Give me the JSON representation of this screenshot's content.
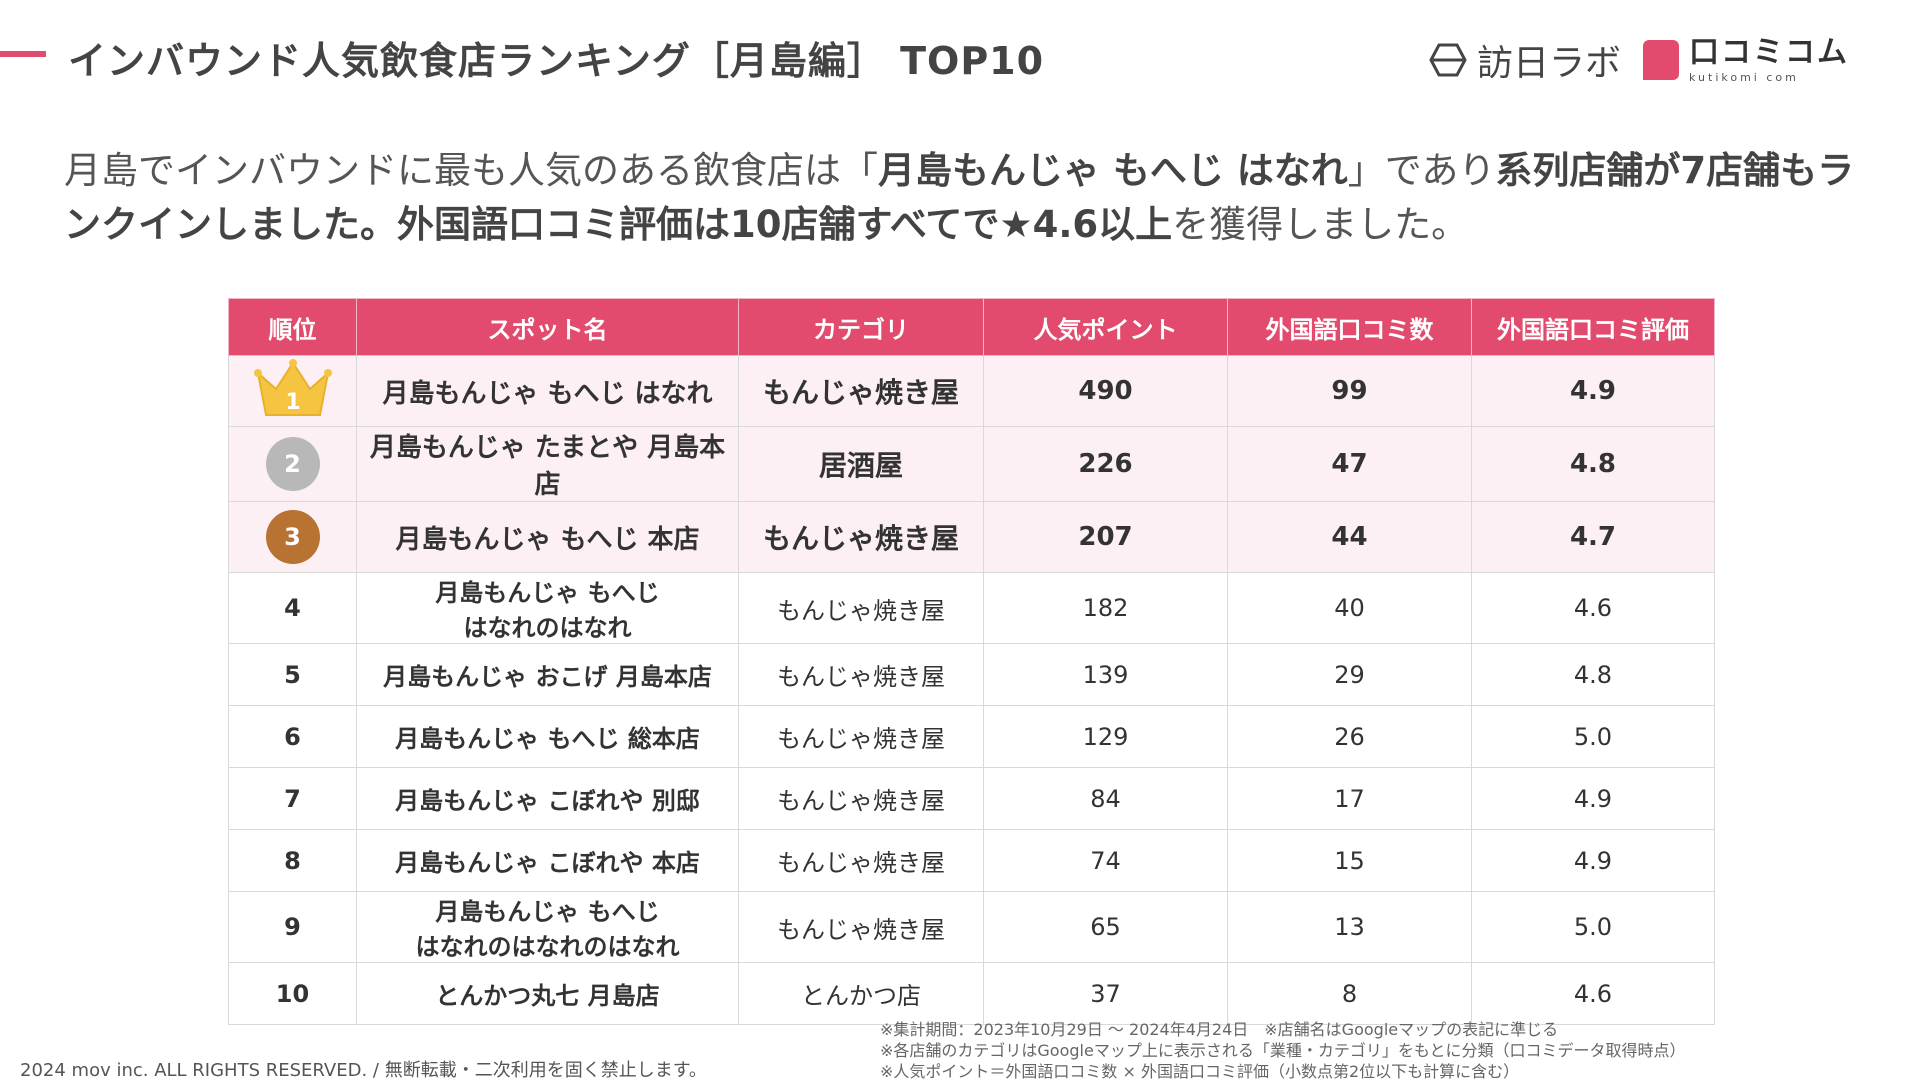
{
  "header": {
    "title": "インバウンド人気飲食店ランキング［月島編］ TOP10",
    "logo_houjin": "訪日ラボ",
    "logo_kutikomi_jp": "口コミコム",
    "logo_kutikomi_en": "kutikomi com",
    "accent_color": "#e24a6e"
  },
  "lead": {
    "part1": "月島でインバウンドに最も人気のある飲食店は「",
    "part2_bold": "月島もんじゃ もへじ はなれ",
    "part3": "」であり",
    "part4_bold": "系列店舗が7店舗もランクインしました。外国語口コミ評価は10店舗すべてで★4.6以上",
    "part5": "を獲得しました。"
  },
  "table": {
    "headers": [
      "順位",
      "スポット名",
      "カテゴリ",
      "人気ポイント",
      "外国語口コミ数",
      "外国語口コミ評価"
    ],
    "rows": [
      {
        "rank": "1",
        "name": "月島もんじゃ もへじ はなれ",
        "category": "もんじゃ焼き屋",
        "points": "490",
        "reviews": "99",
        "rating": "4.9"
      },
      {
        "rank": "2",
        "name": "月島もんじゃ たまとや 月島本店",
        "category": "居酒屋",
        "points": "226",
        "reviews": "47",
        "rating": "4.8"
      },
      {
        "rank": "3",
        "name": "月島もんじゃ もへじ 本店",
        "category": "もんじゃ焼き屋",
        "points": "207",
        "reviews": "44",
        "rating": "4.7"
      },
      {
        "rank": "4",
        "name_line1": "月島もんじゃ もへじ",
        "name_line2": "はなれのはなれ",
        "category": "もんじゃ焼き屋",
        "points": "182",
        "reviews": "40",
        "rating": "4.6"
      },
      {
        "rank": "5",
        "name": "月島もんじゃ おこげ 月島本店",
        "category": "もんじゃ焼き屋",
        "points": "139",
        "reviews": "29",
        "rating": "4.8"
      },
      {
        "rank": "6",
        "name": "月島もんじゃ もへじ 総本店",
        "category": "もんじゃ焼き屋",
        "points": "129",
        "reviews": "26",
        "rating": "5.0"
      },
      {
        "rank": "7",
        "name": "月島もんじゃ こぼれや 別邸",
        "category": "もんじゃ焼き屋",
        "points": "84",
        "reviews": "17",
        "rating": "4.9"
      },
      {
        "rank": "8",
        "name": "月島もんじゃ こぼれや 本店",
        "category": "もんじゃ焼き屋",
        "points": "74",
        "reviews": "15",
        "rating": "4.9"
      },
      {
        "rank": "9",
        "name_line1": "月島もんじゃ もへじ",
        "name_line2": "はなれのはなれのはなれ",
        "category": "もんじゃ焼き屋",
        "points": "65",
        "reviews": "13",
        "rating": "5.0"
      },
      {
        "rank": "10",
        "name": "とんかつ丸七 月島店",
        "category": "とんかつ店",
        "points": "37",
        "reviews": "8",
        "rating": "4.6"
      }
    ]
  },
  "footer": {
    "copyright": "2024 mov inc. ALL RIGHTS RESERVED. / 無断転載・二次利用を固く禁止します。",
    "notes": [
      "※集計期間：2023年10月29日 〜 2024年4月24日　※店舗名はGoogleマップの表記に準じる",
      "※各店舗のカテゴリはGoogleマップ上に表示される「業種・カテゴリ」をもとに分類（口コミデータ取得時点）",
      "※人気ポイント＝外国語口コミ数 × 外国語口コミ評価（小数点第2位以下も計算に含む）"
    ]
  }
}
